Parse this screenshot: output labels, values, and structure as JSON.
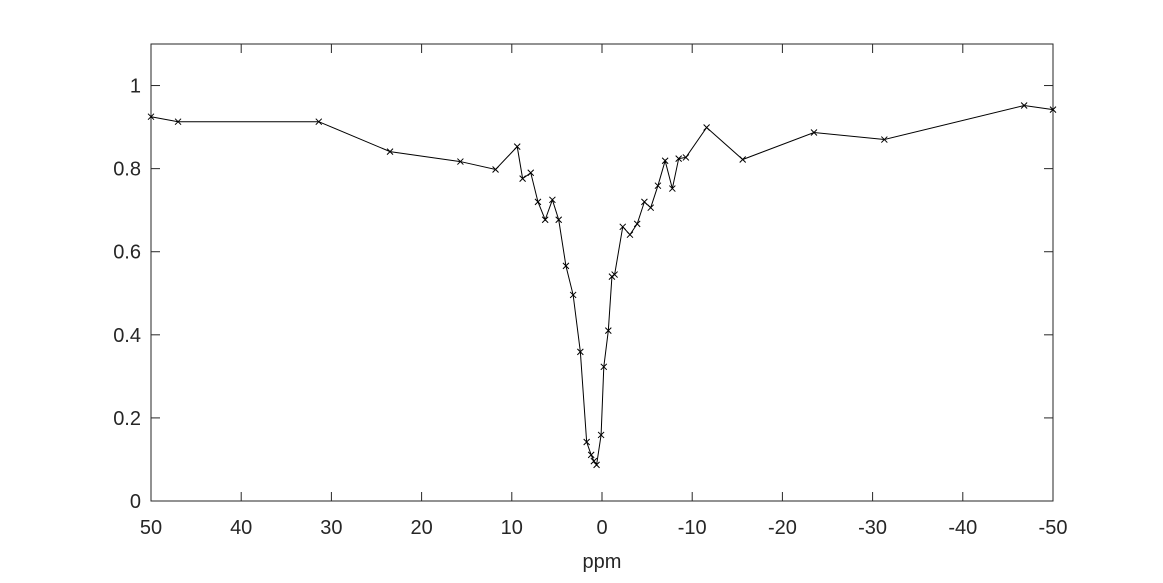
{
  "chart_data": {
    "type": "line",
    "xlabel": "ppm",
    "x": [
      50,
      47,
      31.4,
      23.5,
      15.7,
      11.8,
      9.4,
      8.8,
      7.9,
      7.1,
      6.3,
      5.5,
      4.8,
      4.0,
      3.2,
      2.4,
      1.7,
      1.2,
      0.9,
      0.6,
      0.1,
      -0.2,
      -0.7,
      -1.1,
      -1.4,
      -2.3,
      -3.1,
      -3.9,
      -4.7,
      -5.4,
      -6.2,
      -7.0,
      -7.8,
      -8.5,
      -9.3,
      -11.6,
      -15.6,
      -23.5,
      -31.3,
      -46.8,
      -50
    ],
    "values": [
      0.925,
      0.913,
      0.913,
      0.841,
      0.817,
      0.798,
      0.853,
      0.776,
      0.79,
      0.72,
      0.677,
      0.725,
      0.677,
      0.566,
      0.496,
      0.359,
      0.142,
      0.111,
      0.096,
      0.087,
      0.159,
      0.323,
      0.41,
      0.54,
      0.545,
      0.66,
      0.641,
      0.667,
      0.72,
      0.706,
      0.759,
      0.819,
      0.752,
      0.824,
      0.827,
      0.899,
      0.822,
      0.887,
      0.87,
      0.952,
      0.942
    ],
    "color": "#000000",
    "xlim": [
      50,
      -50
    ],
    "xticks": [
      50,
      40,
      30,
      20,
      10,
      0,
      -10,
      -20,
      -30,
      -40,
      -50
    ],
    "ylim": [
      0,
      1.1
    ],
    "yticks": [
      0,
      0.2,
      0.4,
      0.6,
      0.8,
      1
    ]
  }
}
